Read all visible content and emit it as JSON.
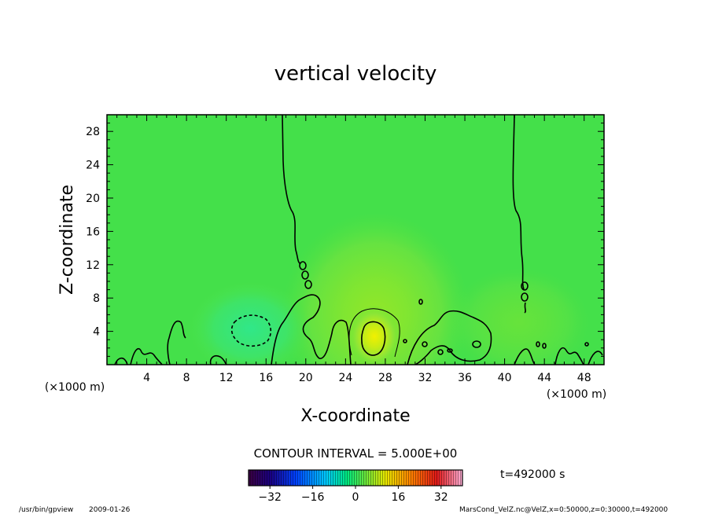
{
  "chart_data": {
    "type": "heatmap",
    "title": "vertical velocity",
    "xlabel": "X-coordinate",
    "ylabel": "Z-coordinate",
    "x_unit": "(×1000 m)",
    "y_unit": "(×1000 m)",
    "xlim": [
      0,
      50
    ],
    "ylim": [
      0,
      30
    ],
    "x_ticks": [
      "4",
      "8",
      "12",
      "16",
      "20",
      "24",
      "28",
      "32",
      "36",
      "40",
      "44",
      "48"
    ],
    "y_ticks": [
      "4",
      "8",
      "12",
      "16",
      "20",
      "24",
      "28"
    ],
    "contour_interval": "CONTOUR INTERVAL = 5.000E+00",
    "time": "t=492000 s",
    "colorbar": {
      "min": -40,
      "max": 40,
      "ticks": [
        "−32",
        "−16",
        "0",
        "16",
        "32"
      ]
    },
    "features": [
      {
        "name": "updraft",
        "x": 26.5,
        "z": 3.5,
        "value": 15
      },
      {
        "name": "downdraft",
        "x": 14.5,
        "z": 4.0,
        "value": -5
      }
    ]
  },
  "footer": {
    "program": "/usr/bin/gpview",
    "date": "2009-01-26",
    "source": "MarsCond_VelZ.nc@VelZ,x=0:50000,z=0:30000,t=492000"
  }
}
